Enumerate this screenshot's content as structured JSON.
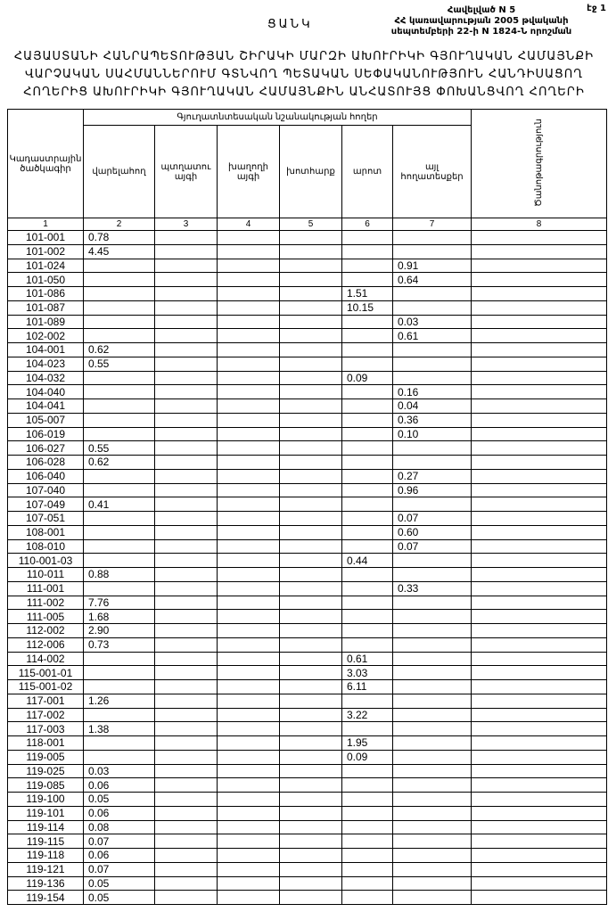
{
  "header": {
    "page": "էջ 1",
    "annex": "Հավելված N 5",
    "decree_line1": "ՀՀ կառավարության 2005 թվականի",
    "decree_line2": "սեպտեմբերի 22-ի N 1824-Ն որոշման",
    "list": "ՑԱՆԿ",
    "title": [
      "ՀԱՅԱՍՏԱՆԻ ՀԱՆՐԱՊԵՏՈՒԹՅԱՆ ՇԻՐԱԿԻ ՄԱՐԶԻ ԱԽՈՒՐԻԿԻ ԳՅՈՒՂԱԿԱՆ ՀԱՄԱՅՆՔԻ",
      "ՎԱՐՉԱԿԱՆ ՍԱՀՄԱՆՆԵՐՈՒՄ ԳՏՆՎՈՂ ՊԵՏԱԿԱՆ ՍԵՓԱԿԱՆՈՒԹՅՈՒՆ ՀԱՆԴԻՍԱՑՈՂ",
      "ՀՈՂԵՐԻՑ ԱԽՈՒՐԻԿԻ ԳՅՈՒՂԱԿԱՆ ՀԱՄԱՅՆՔԻՆ ԱՆՀԱՏՈՒՅՑ ՓՈԽԱՆՑՎՈՂ ՀՈՂԵՐԻ"
    ]
  },
  "table": {
    "group": "Գյուղատնտեսական նշանակության հողեր",
    "columns": [
      "Կադաստրային ծածկագիր",
      "վարելահող",
      "պտղատու այգի",
      "խաղողի այգի",
      "խոտհարք",
      "արոտ",
      "այլ հողատեսքեր",
      "Ծանոթագրություն"
    ],
    "numbers": [
      "1",
      "2",
      "3",
      "4",
      "5",
      "6",
      "7",
      "8"
    ],
    "rows": [
      [
        "101-001",
        "0.78",
        null,
        null,
        null,
        null,
        null,
        null
      ],
      [
        "101-002",
        "4.45",
        null,
        null,
        null,
        null,
        null,
        null
      ],
      [
        "101-024",
        null,
        null,
        null,
        null,
        null,
        "0.91",
        null
      ],
      [
        "101-050",
        null,
        null,
        null,
        null,
        null,
        "0.64",
        null
      ],
      [
        "101-086",
        null,
        null,
        null,
        null,
        "1.51",
        null,
        null
      ],
      [
        "101-087",
        null,
        null,
        null,
        null,
        "10.15",
        null,
        null
      ],
      [
        "101-089",
        null,
        null,
        null,
        null,
        null,
        "0.03",
        null
      ],
      [
        "102-002",
        null,
        null,
        null,
        null,
        null,
        "0.61",
        null
      ],
      [
        "104-001",
        "0.62",
        null,
        null,
        null,
        null,
        null,
        null
      ],
      [
        "104-023",
        "0.55",
        null,
        null,
        null,
        null,
        null,
        null
      ],
      [
        "104-032",
        null,
        null,
        null,
        null,
        "0.09",
        null,
        null
      ],
      [
        "104-040",
        null,
        null,
        null,
        null,
        null,
        "0.16",
        null
      ],
      [
        "104-041",
        null,
        null,
        null,
        null,
        null,
        "0.04",
        null
      ],
      [
        "105-007",
        null,
        null,
        null,
        null,
        null,
        "0.36",
        null
      ],
      [
        "106-019",
        null,
        null,
        null,
        null,
        null,
        "0.10",
        null
      ],
      [
        "106-027",
        "0.55",
        null,
        null,
        null,
        null,
        null,
        null
      ],
      [
        "106-028",
        "0.62",
        null,
        null,
        null,
        null,
        null,
        null
      ],
      [
        "106-040",
        null,
        null,
        null,
        null,
        null,
        "0.27",
        null
      ],
      [
        "107-040",
        null,
        null,
        null,
        null,
        null,
        "0.96",
        null
      ],
      [
        "107-049",
        "0.41",
        null,
        null,
        null,
        null,
        null,
        null
      ],
      [
        "107-051",
        null,
        null,
        null,
        null,
        null,
        "0.07",
        null
      ],
      [
        "108-001",
        null,
        null,
        null,
        null,
        null,
        "0.60",
        null
      ],
      [
        "108-010",
        null,
        null,
        null,
        null,
        null,
        "0.07",
        null
      ],
      [
        "110-001-03",
        null,
        null,
        null,
        null,
        "0.44",
        null,
        null
      ],
      [
        "110-011",
        "0.88",
        null,
        null,
        null,
        null,
        null,
        null
      ],
      [
        "111-001",
        null,
        null,
        null,
        null,
        null,
        "0.33",
        null
      ],
      [
        "111-002",
        "7.76",
        null,
        null,
        null,
        null,
        null,
        null
      ],
      [
        "111-005",
        "1.68",
        null,
        null,
        null,
        null,
        null,
        null
      ],
      [
        "112-002",
        "2.90",
        null,
        null,
        null,
        null,
        null,
        null
      ],
      [
        "112-006",
        "0.73",
        null,
        null,
        null,
        null,
        null,
        null
      ],
      [
        "114-002",
        null,
        null,
        null,
        null,
        "0.61",
        null,
        null
      ],
      [
        "115-001-01",
        null,
        null,
        null,
        null,
        "3.03",
        null,
        null
      ],
      [
        "115-001-02",
        null,
        null,
        null,
        null,
        "6.11",
        null,
        null
      ],
      [
        "117-001",
        "1.26",
        null,
        null,
        null,
        null,
        null,
        null
      ],
      [
        "117-002",
        null,
        null,
        null,
        null,
        "3.22",
        null,
        null
      ],
      [
        "117-003",
        "1.38",
        null,
        null,
        null,
        null,
        null,
        null
      ],
      [
        "118-001",
        null,
        null,
        null,
        null,
        "1.95",
        null,
        null
      ],
      [
        "119-005",
        null,
        null,
        null,
        null,
        "0.09",
        null,
        null
      ],
      [
        "119-025",
        "0.03",
        null,
        null,
        null,
        null,
        null,
        null
      ],
      [
        "119-085",
        "0.06",
        null,
        null,
        null,
        null,
        null,
        null
      ],
      [
        "119-100",
        "0.05",
        null,
        null,
        null,
        null,
        null,
        null
      ],
      [
        "119-101",
        "0.06",
        null,
        null,
        null,
        null,
        null,
        null
      ],
      [
        "119-114",
        "0.08",
        null,
        null,
        null,
        null,
        null,
        null
      ],
      [
        "119-115",
        "0.07",
        null,
        null,
        null,
        null,
        null,
        null
      ],
      [
        "119-118",
        "0.06",
        null,
        null,
        null,
        null,
        null,
        null
      ],
      [
        "119-121",
        "0.07",
        null,
        null,
        null,
        null,
        null,
        null
      ],
      [
        "119-136",
        "0.05",
        null,
        null,
        null,
        null,
        null,
        null
      ],
      [
        "119-154",
        "0.05",
        null,
        null,
        null,
        null,
        null,
        null
      ]
    ]
  }
}
